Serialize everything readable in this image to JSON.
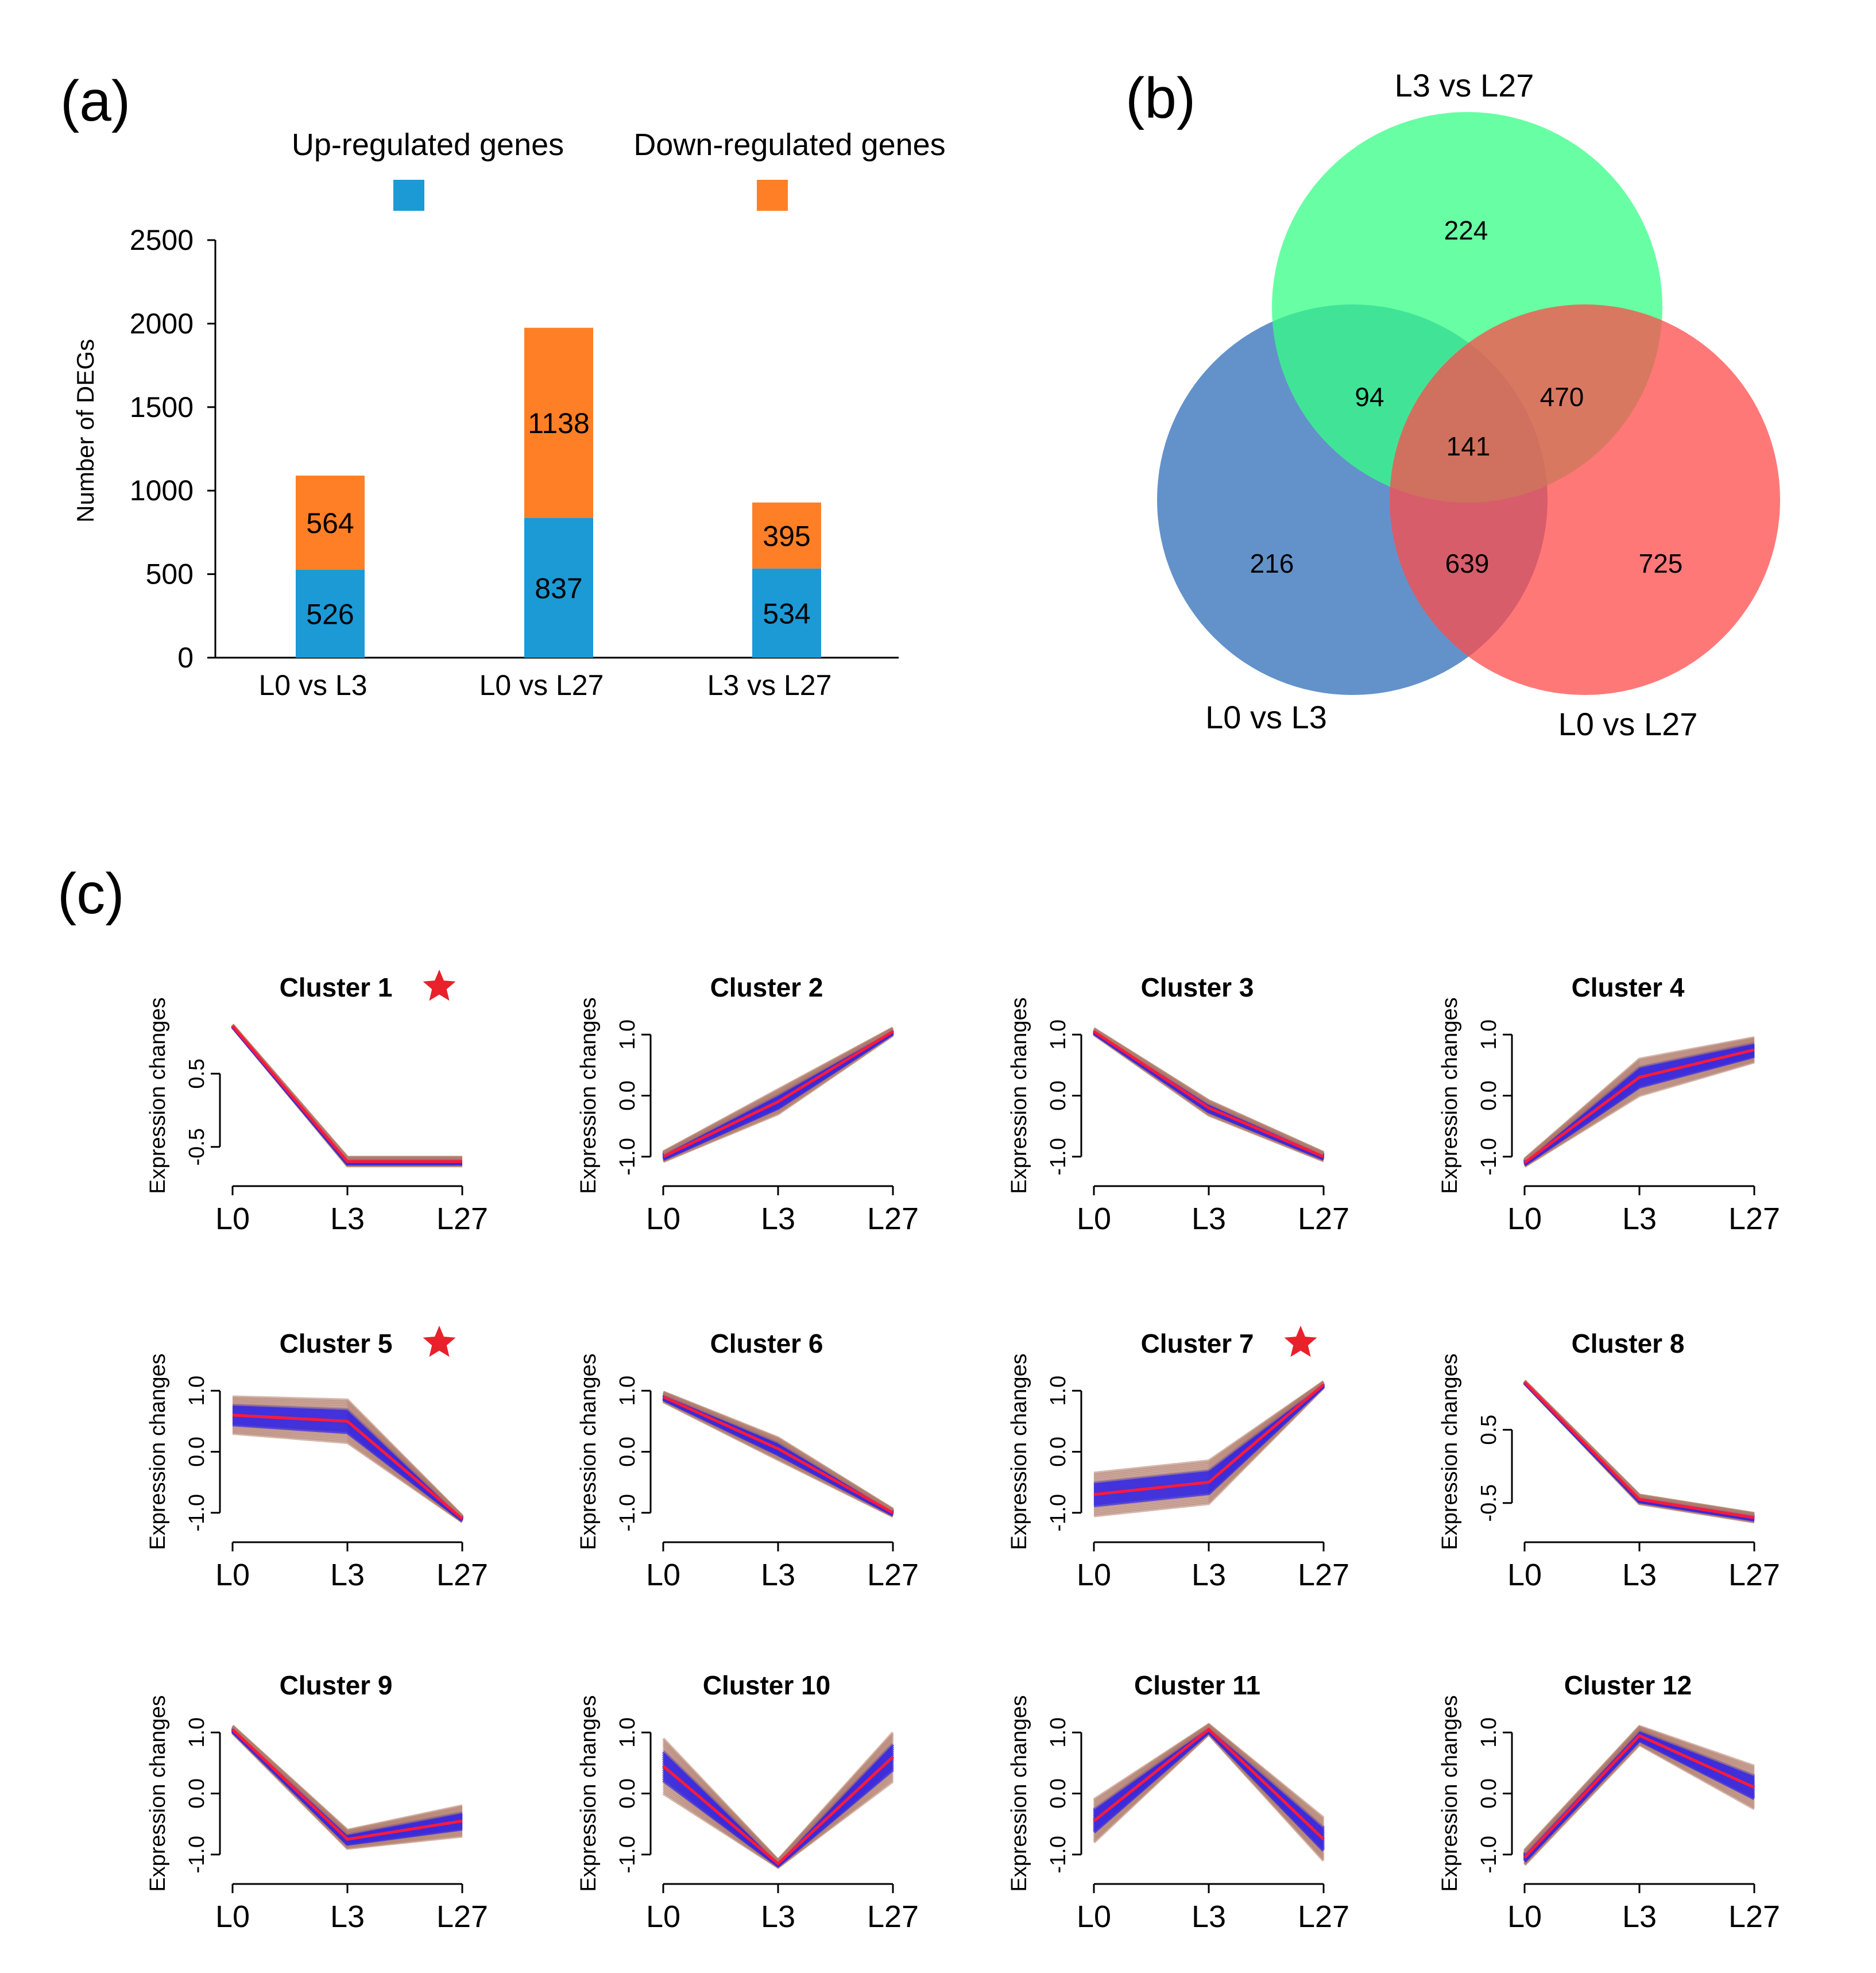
{
  "panel_labels": {
    "a": "(a)",
    "b": "(b)",
    "c": "(c)"
  },
  "colors": {
    "up": "#1b9ad6",
    "down": "#ff7f27",
    "venn": [
      "#2f6db8",
      "#35ff85",
      "#ff4b4b"
    ],
    "cluster_center": "#ff1a3a",
    "cluster_core": "#3b2bd9",
    "cluster_outer": "#b07c6a",
    "star": "#e8212b"
  },
  "chart_data": [
    {
      "type": "bar",
      "stacked": true,
      "title": "",
      "xlabel": "",
      "ylabel": "Number of DEGs",
      "ylim": [
        0,
        2500
      ],
      "yticks": [
        "0",
        "500",
        "1000",
        "1500",
        "2000",
        "2500"
      ],
      "categories": [
        "L0 vs L3",
        "L0 vs L27",
        "L3 vs L27"
      ],
      "series": [
        {
          "name": "Up-regulated genes",
          "values": [
            526,
            837,
            534
          ]
        },
        {
          "name": "Down-regulated genes",
          "values": [
            564,
            1138,
            395
          ]
        }
      ],
      "labels": {
        "Up-regulated genes": [
          "526",
          "837",
          "534"
        ],
        "Down-regulated genes": [
          "564",
          "1138",
          "395"
        ]
      },
      "legend": "top"
    },
    {
      "type": "venn",
      "sets": [
        "L0 vs L3",
        "L3 vs L27",
        "L0 vs L27"
      ],
      "regions": {
        "only_L0vsL3": "216",
        "only_L3vsL27": "224",
        "only_L0vsL27": "725",
        "L0vsL3_L3vsL27": "94",
        "L3vsL27_L0vsL27": "470",
        "L0vsL3_L0vsL27": "639",
        "all": "141"
      }
    },
    {
      "type": "line",
      "ylabel": "Expression changes",
      "x": [
        "L0",
        "L3",
        "L27"
      ],
      "clusters": [
        {
          "title": "Cluster 1",
          "star": true,
          "ylim": [
            -0.8,
            1.2
          ],
          "yticks": [
            -0.5,
            0.5
          ],
          "ytick_labels": [
            "-0.5",
            "0.5"
          ],
          "center": [
            1.15,
            -0.7,
            -0.7
          ],
          "spread": [
            0.02,
            0.06,
            0.06
          ]
        },
        {
          "title": "Cluster 2",
          "star": false,
          "ylim": [
            -1.2,
            1.2
          ],
          "yticks": [
            -1.0,
            0.0,
            1.0
          ],
          "ytick_labels": [
            "-1.0",
            "0.0",
            "1.0"
          ],
          "center": [
            -1.0,
            -0.1,
            1.05
          ],
          "spread": [
            0.08,
            0.2,
            0.06
          ]
        },
        {
          "title": "Cluster 3",
          "star": false,
          "ylim": [
            -1.2,
            1.2
          ],
          "yticks": [
            -1.0,
            0.0,
            1.0
          ],
          "ytick_labels": [
            "-1.0",
            "0.0",
            "1.0"
          ],
          "center": [
            1.05,
            -0.2,
            -1.0
          ],
          "spread": [
            0.05,
            0.12,
            0.07
          ]
        },
        {
          "title": "Cluster 4",
          "star": false,
          "ylim": [
            -1.2,
            1.2
          ],
          "yticks": [
            -1.0,
            0.0,
            1.0
          ],
          "ytick_labels": [
            "-1.0",
            "0.0",
            "1.0"
          ],
          "center": [
            -1.1,
            0.3,
            0.75
          ],
          "spread": [
            0.06,
            0.3,
            0.2
          ]
        },
        {
          "title": "Cluster 5",
          "star": true,
          "ylim": [
            -1.2,
            1.2
          ],
          "yticks": [
            -1.0,
            0.0,
            1.0
          ],
          "ytick_labels": [
            "-1.0",
            "0.0",
            "1.0"
          ],
          "center": [
            0.6,
            0.5,
            -1.1
          ],
          "spread": [
            0.3,
            0.35,
            0.05
          ]
        },
        {
          "title": "Cluster 6",
          "star": false,
          "ylim": [
            -1.2,
            1.2
          ],
          "yticks": [
            -1.0,
            0.0,
            1.0
          ],
          "ytick_labels": [
            "-1.0",
            "0.0",
            "1.0"
          ],
          "center": [
            0.9,
            0.05,
            -1.0
          ],
          "spread": [
            0.08,
            0.18,
            0.06
          ]
        },
        {
          "title": "Cluster 7",
          "star": true,
          "ylim": [
            -1.2,
            1.2
          ],
          "yticks": [
            -1.0,
            0.0,
            1.0
          ],
          "ytick_labels": [
            "-1.0",
            "0.0",
            "1.0"
          ],
          "center": [
            -0.7,
            -0.5,
            1.1
          ],
          "spread": [
            0.35,
            0.35,
            0.05
          ]
        },
        {
          "title": "Cluster 8",
          "star": false,
          "ylim": [
            -0.8,
            1.2
          ],
          "yticks": [
            -0.5,
            0.5
          ],
          "ytick_labels": [
            "-0.5",
            "0.5"
          ],
          "center": [
            1.15,
            -0.45,
            -0.7
          ],
          "spread": [
            0.02,
            0.06,
            0.06
          ]
        },
        {
          "title": "Cluster 9",
          "star": false,
          "ylim": [
            -1.2,
            1.2
          ],
          "yticks": [
            -1.0,
            0.0,
            1.0
          ],
          "ytick_labels": [
            "-1.0",
            "0.0",
            "1.0"
          ],
          "center": [
            1.05,
            -0.75,
            -0.45
          ],
          "spread": [
            0.06,
            0.15,
            0.25
          ]
        },
        {
          "title": "Cluster 10",
          "star": false,
          "ylim": [
            -1.2,
            1.2
          ],
          "yticks": [
            -1.0,
            0.0,
            1.0
          ],
          "ytick_labels": [
            "-1.0",
            "0.0",
            "1.0"
          ],
          "center": [
            0.45,
            -1.15,
            0.6
          ],
          "spread": [
            0.45,
            0.06,
            0.4
          ]
        },
        {
          "title": "Cluster 11",
          "star": false,
          "ylim": [
            -1.2,
            1.2
          ],
          "yticks": [
            -1.0,
            0.0,
            1.0
          ],
          "ytick_labels": [
            "-1.0",
            "0.0",
            "1.0"
          ],
          "center": [
            -0.45,
            1.05,
            -0.75
          ],
          "spread": [
            0.35,
            0.08,
            0.35
          ]
        },
        {
          "title": "Cluster 12",
          "star": false,
          "ylim": [
            -1.2,
            1.2
          ],
          "yticks": [
            -1.0,
            0.0,
            1.0
          ],
          "ytick_labels": [
            "-1.0",
            "0.0",
            "1.0"
          ],
          "center": [
            -1.05,
            0.95,
            0.1
          ],
          "spread": [
            0.12,
            0.15,
            0.35
          ]
        }
      ]
    }
  ]
}
